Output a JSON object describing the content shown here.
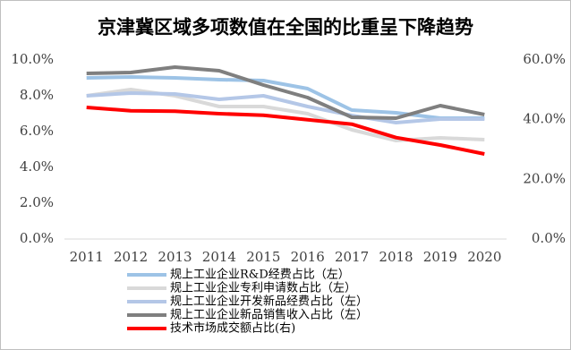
{
  "chart_data": {
    "type": "line",
    "title": "京津冀区域多项数值在全国的比重呈下降趋势",
    "categories": [
      "2011",
      "2012",
      "2013",
      "2014",
      "2015",
      "2016",
      "2017",
      "2018",
      "2019",
      "2020"
    ],
    "series": [
      {
        "name": "规上工业企业R&D经费占比（左）",
        "color": "#9dc3e6",
        "values": [
          9.0,
          9.05,
          9.0,
          8.9,
          8.85,
          8.4,
          7.2,
          7.05,
          6.75,
          6.75
        ]
      },
      {
        "name": "规上工业企业专利申请数占比（左）",
        "color": "#d9d9d9",
        "values": [
          8.0,
          8.35,
          8.0,
          7.4,
          7.4,
          7.0,
          6.1,
          5.5,
          5.65,
          5.55
        ]
      },
      {
        "name": "规上工业企业开发新品经费占比（左）",
        "color": "#b4c7e7",
        "values": [
          8.0,
          8.15,
          8.1,
          7.8,
          8.0,
          7.4,
          6.9,
          6.5,
          6.7,
          6.7
        ]
      },
      {
        "name": "规上工业企业新品销售收入占比（左）",
        "color": "#7f7f7f",
        "values": [
          9.25,
          9.3,
          9.6,
          9.4,
          8.6,
          7.9,
          6.8,
          6.75,
          7.45,
          6.95
        ]
      },
      {
        "name": "技术市场成交额占比(右)",
        "color": "#ff0000",
        "axis": "y2",
        "values": [
          44.1,
          43.0,
          42.8,
          42.0,
          41.5,
          40.0,
          38.5,
          34.0,
          31.5,
          28.5
        ]
      }
    ],
    "ylim": [
      0,
      10
    ],
    "yticks": [
      {
        "value": 0,
        "label": "0.0%"
      },
      {
        "value": 2,
        "label": "2.0%"
      },
      {
        "value": 4,
        "label": "4.0%"
      },
      {
        "value": 6,
        "label": "6.0%"
      },
      {
        "value": 8,
        "label": "8.0%"
      },
      {
        "value": 10,
        "label": "10.0%"
      }
    ],
    "y2lim": [
      0,
      60
    ],
    "y2ticks": [
      {
        "value": 0,
        "label": "0.0%"
      },
      {
        "value": 20,
        "label": "20.0%"
      },
      {
        "value": 40,
        "label": "40.0%"
      },
      {
        "value": 60,
        "label": "60.0%"
      }
    ]
  }
}
